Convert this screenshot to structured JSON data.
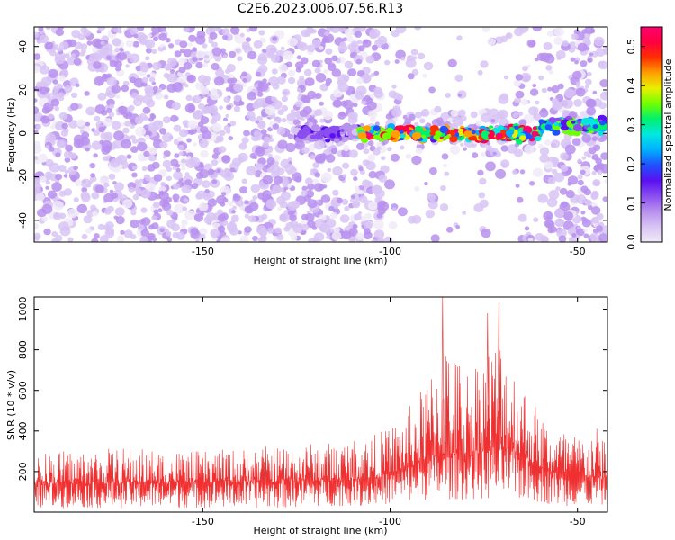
{
  "title": "C2E6.2023.006.07.56.R13",
  "chart_data": [
    {
      "type": "heatmap",
      "xlabel": "Height of straight line (km)",
      "ylabel": "Frequency (Hz)",
      "xlim": [
        -195,
        -42
      ],
      "ylim": [
        -50,
        49
      ],
      "xticks": [
        -150,
        -100,
        -50
      ],
      "yticks": [
        -40,
        -20,
        0,
        20,
        40
      ],
      "colorbar": {
        "label": "Normalized spectral amplitude",
        "range": [
          0.0,
          0.55
        ],
        "ticks": [
          "0.0",
          "0.1",
          "0.2",
          "0.3",
          "0.4",
          "0.5"
        ],
        "colors": [
          "#f0eaf8",
          "#d8c4f4",
          "#b890ee",
          "#8a4ef0",
          "#5a10f0",
          "#2050ff",
          "#00b0ff",
          "#00e8e0",
          "#00f070",
          "#70ff00",
          "#e8f000",
          "#ffa000",
          "#ff3000",
          "#ff0040",
          "#ff0070"
        ]
      },
      "features": [
        {
          "description_value": "background noise",
          "x_range": [
            -195,
            -42
          ],
          "amplitude": 0.05
        },
        {
          "description_value": "weak band",
          "x_range": [
            -125,
            -108
          ],
          "freq_center": 0,
          "amplitude": 0.12
        },
        {
          "description_value": "strong band",
          "x_range": [
            -108,
            -60
          ],
          "freq_center": 0,
          "amplitude": 0.5
        },
        {
          "description_value": "band tail",
          "x_range": [
            -60,
            -42
          ],
          "freq_center": 4,
          "amplitude": 0.3
        }
      ]
    },
    {
      "type": "line",
      "xlabel": "Height of straight line (km)",
      "ylabel": "SNR (10 * v/v)",
      "xlim": [
        -195,
        -42
      ],
      "ylim": [
        0,
        1060
      ],
      "xticks": [
        -150,
        -100,
        -50
      ],
      "yticks": [
        200,
        400,
        600,
        800,
        1000
      ],
      "series": [
        {
          "color": "#f03030",
          "envelope": {
            "x": [
              -195,
              -170,
              -150,
              -130,
              -115,
              -105,
              -100,
              -95,
              -90,
              -86,
              -80,
              -75,
              -70,
              -66,
              -62,
              -58,
              -55,
              -50,
              -45,
              -42
            ],
            "upper": [
              300,
              320,
              300,
              330,
              350,
              380,
              420,
              520,
              650,
              900,
              720,
              820,
              900,
              700,
              560,
              450,
              420,
              380,
              420,
              380
            ],
            "baseline": [
              140,
              140,
              145,
              150,
              155,
              165,
              180,
              220,
              260,
              280,
              270,
              300,
              320,
              280,
              240,
              200,
              185,
              170,
              165,
              160
            ],
            "lower": [
              20,
              20,
              20,
              20,
              30,
              30,
              40,
              50,
              60,
              60,
              60,
              60,
              70,
              60,
              50,
              40,
              30,
              30,
              30,
              30
            ]
          },
          "peaks": [
            {
              "x": -86,
              "y": 1060
            },
            {
              "x": -71,
              "y": 1030
            },
            {
              "x": -74,
              "y": 980
            }
          ]
        }
      ]
    }
  ]
}
